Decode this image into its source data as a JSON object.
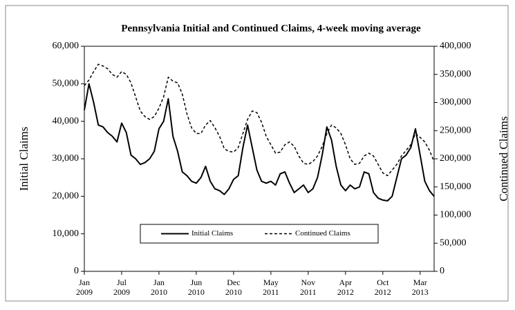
{
  "chart_data": {
    "type": "line",
    "title": "Pennsylvania Initial and Continued  Claims, 4-week moving average",
    "y_label": "Initial Claims",
    "y2_label": "Continued Claims",
    "categories": [
      "Jan 2009",
      null,
      null,
      null,
      null,
      null,
      null,
      null,
      "Jul 2009",
      null,
      null,
      null,
      null,
      null,
      null,
      null,
      "Jan 2010",
      null,
      null,
      null,
      null,
      null,
      null,
      null,
      "Jun 2010",
      null,
      null,
      null,
      null,
      null,
      null,
      null,
      "Dec 2010",
      null,
      null,
      null,
      null,
      null,
      null,
      null,
      "May 2011",
      null,
      null,
      null,
      null,
      null,
      null,
      null,
      "Nov 2011",
      null,
      null,
      null,
      null,
      null,
      null,
      null,
      "Apr 2012",
      null,
      null,
      null,
      null,
      null,
      null,
      null,
      "Oct 2012",
      null,
      null,
      null,
      null,
      null,
      null,
      null,
      "Mar 2013",
      null,
      null,
      null
    ],
    "series": [
      {
        "name": "Initial Claims",
        "color": "#000000",
        "line_style": "solid",
        "values": [
          43000,
          50000,
          45000,
          39000,
          38500,
          37000,
          36000,
          34500,
          39500,
          37000,
          31000,
          30000,
          28500,
          29000,
          30000,
          32000,
          38000,
          40000,
          46000,
          36000,
          32000,
          26500,
          25500,
          24000,
          23500,
          25000,
          28000,
          24000,
          22000,
          21500,
          20500,
          22000,
          24500,
          25500,
          33000,
          39000,
          33000,
          27000,
          24000,
          23500,
          24000,
          23000,
          26000,
          26500,
          23500,
          21000,
          22000,
          23000,
          21000,
          22000,
          25000,
          31000,
          38500,
          35000,
          28000,
          23000,
          21500,
          23000,
          22000,
          22500,
          26500,
          26000,
          21000,
          19500,
          19000,
          18800,
          20000,
          25000,
          30000,
          31000,
          33000,
          38000,
          31000,
          24000,
          21500,
          20000
        ]
      },
      {
        "name": "Continued Claims",
        "color": "#000000",
        "line_style": "dashed",
        "axis": "y2",
        "values": [
          330000,
          340000,
          355000,
          368000,
          365000,
          360000,
          350000,
          345000,
          355000,
          350000,
          335000,
          310000,
          285000,
          275000,
          270000,
          275000,
          290000,
          310000,
          345000,
          338000,
          335000,
          315000,
          280000,
          255000,
          245000,
          245000,
          260000,
          268000,
          255000,
          240000,
          218000,
          213000,
          212000,
          220000,
          245000,
          270000,
          285000,
          282000,
          265000,
          240000,
          225000,
          210000,
          212000,
          225000,
          230000,
          222000,
          205000,
          192000,
          190000,
          195000,
          205000,
          222000,
          245000,
          260000,
          255000,
          245000,
          225000,
          200000,
          190000,
          192000,
          205000,
          210000,
          205000,
          190000,
          175000,
          170000,
          180000,
          190000,
          205000,
          215000,
          225000,
          245000,
          238000,
          230000,
          215000,
          195000
        ]
      }
    ],
    "ylim": [
      0,
      60000
    ],
    "yticks": [
      0,
      {
        "value": 10000,
        "label": "10,000"
      },
      {
        "value": 20000,
        "label": "20,000"
      },
      {
        "value": 30000,
        "label": "30,000"
      },
      {
        "value": 40000,
        "label": "40,000"
      },
      {
        "value": 50000,
        "label": "50,000"
      },
      {
        "value": 60000,
        "label": "60,000"
      }
    ],
    "y2lim": [
      0,
      400000
    ],
    "y2ticks": [
      0,
      {
        "value": 50000,
        "label": "50,000"
      },
      {
        "value": 100000,
        "label": "100,000"
      },
      {
        "value": 150000,
        "label": "150,000"
      },
      {
        "value": 200000,
        "label": "200,000"
      },
      {
        "value": 250000,
        "label": "250,000"
      },
      {
        "value": 300000,
        "label": "300,000"
      },
      {
        "value": 350000,
        "label": "350,000"
      },
      {
        "value": 400000,
        "label": "400,000"
      }
    ],
    "legend": "lower center",
    "grid": false
  }
}
